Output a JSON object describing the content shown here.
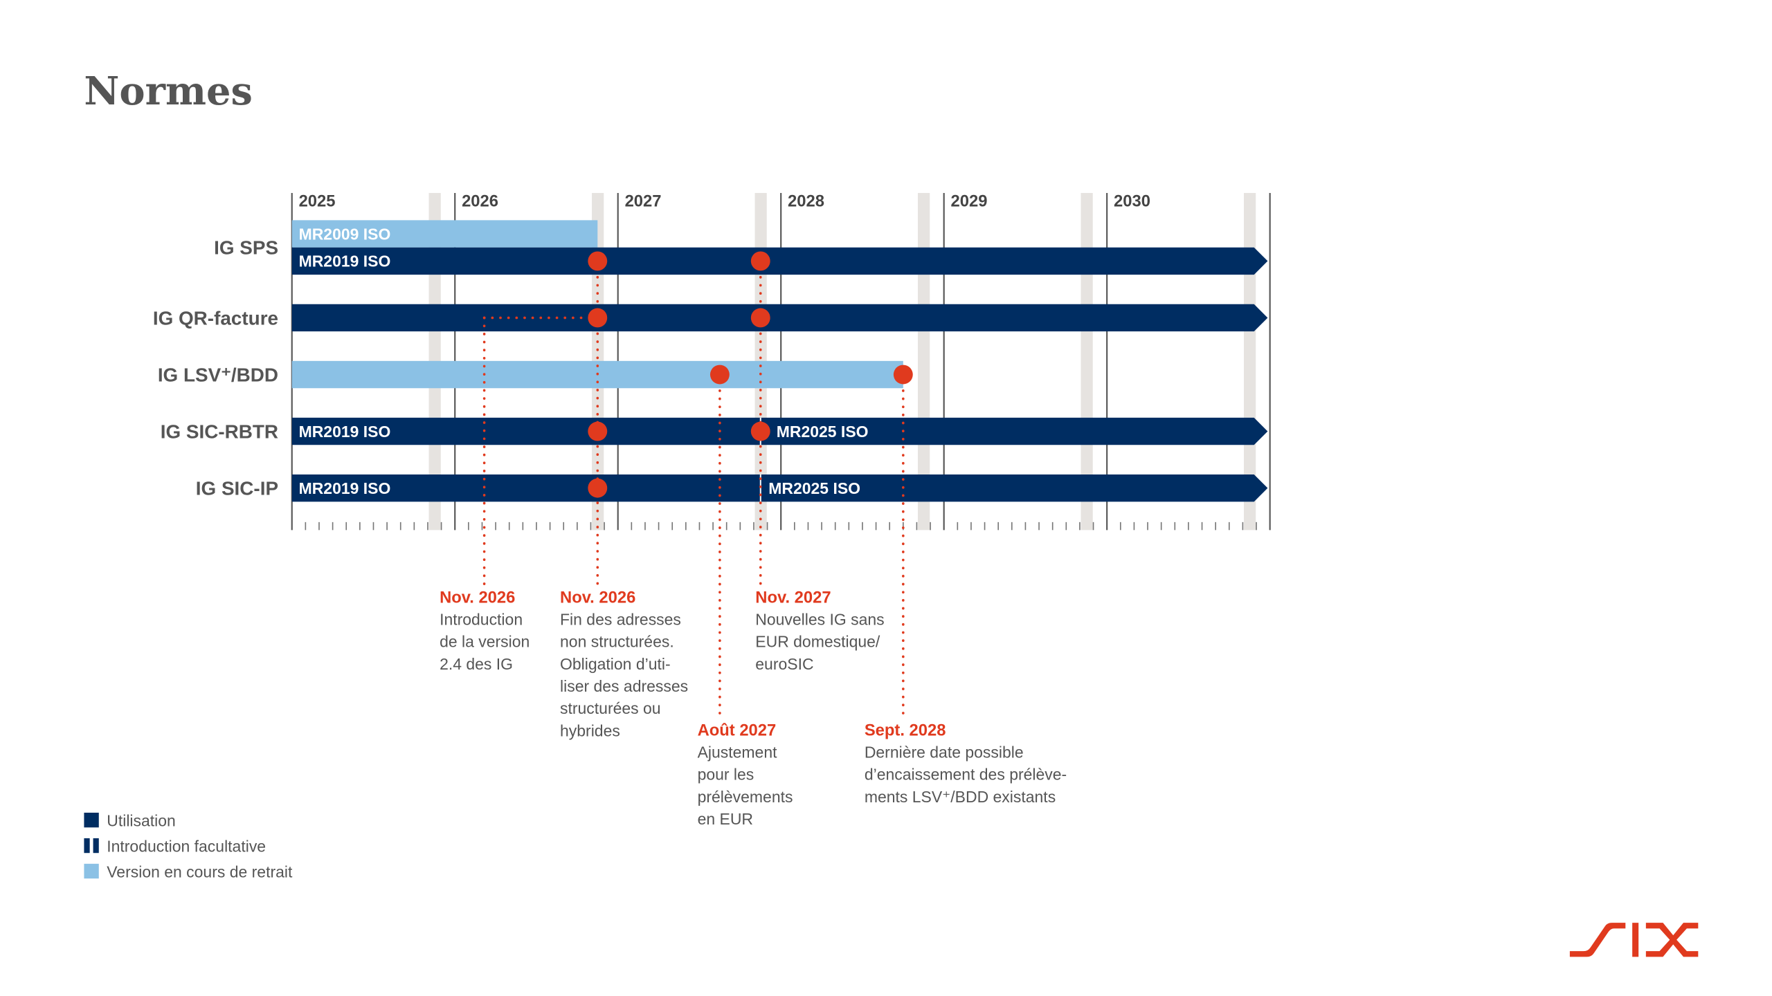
{
  "title": "Normes",
  "colors": {
    "usage": "#002d62",
    "retiring": "#8bc1e5",
    "milestone": "#e03a1e",
    "band": "#e6e3e0",
    "text": "#555555",
    "logo": "#e03a1e"
  },
  "timeline": {
    "years": [
      "2025",
      "2026",
      "2027",
      "2028",
      "2029",
      "2030"
    ],
    "start": 2025,
    "end": 2031,
    "ticks": "monthly",
    "grey_bands_at_month": "Nov"
  },
  "rows": [
    {
      "label": "IG SPS",
      "bars": [
        {
          "type": "retiring",
          "start": 2025,
          "end": 2026.875,
          "label": "MR2009 ISO",
          "lane": "upper"
        },
        {
          "type": "usage",
          "start": 2025,
          "end": 2031,
          "label": "MR2019 ISO",
          "arrow": true,
          "lane": "lower"
        }
      ],
      "milestones": [
        2026.875,
        2027.875
      ]
    },
    {
      "label": "IG QR-facture",
      "bars": [
        {
          "type": "usage",
          "start": 2025,
          "end": 2031,
          "arrow": true
        }
      ],
      "milestones": [
        2026.875,
        2027.875
      ]
    },
    {
      "label": "IG LSV⁺/BDD",
      "bars": [
        {
          "type": "retiring",
          "start": 2025,
          "end": 2028.75
        }
      ],
      "milestones": [
        2027.625,
        2028.75
      ]
    },
    {
      "label": "IG SIC-RBTR",
      "bars": [
        {
          "type": "usage",
          "start": 2025,
          "end": 2031,
          "arrow": true,
          "label": "MR2019 ISO",
          "switch_at": 2027.875,
          "label2": "MR2025 ISO"
        }
      ],
      "milestones": [
        2026.875,
        2027.875
      ]
    },
    {
      "label": "IG SIC-IP",
      "bars": [
        {
          "type": "usage",
          "start": 2025,
          "end": 2031,
          "arrow": true,
          "label": "MR2019 ISO",
          "switch_at": 2027.875,
          "label2": "MR2025 ISO"
        }
      ],
      "milestones": [
        2026.875
      ]
    }
  ],
  "annotations": [
    {
      "date": "Nov. 2026",
      "lines": [
        "Introduction",
        "de la version",
        "2.4 des IG"
      ]
    },
    {
      "date": "Nov. 2026",
      "lines": [
        "Fin des adresses",
        "non structurées.",
        "Obligation d’uti-",
        "liser des adresses",
        "structurées ou",
        "hybrides"
      ]
    },
    {
      "date": "Nov. 2027",
      "lines": [
        "Nouvelles IG sans",
        "EUR domestique/",
        "euroSIC"
      ]
    },
    {
      "date": "Août 2027",
      "lines": [
        "Ajustement",
        "pour les",
        "prélèvements",
        "en EUR"
      ]
    },
    {
      "date": "Sept. 2028",
      "lines": [
        "Dernière date possible",
        "d’encaissement des prélève-",
        "ments LSV⁺/BDD existants"
      ]
    }
  ],
  "legend": [
    {
      "swatch": "solid-dark",
      "label": "Utilisation"
    },
    {
      "swatch": "split-dark",
      "label": "Introduction facultative"
    },
    {
      "swatch": "solid-light",
      "label": "Version en cours de retrait"
    }
  ],
  "logo": "SIX"
}
